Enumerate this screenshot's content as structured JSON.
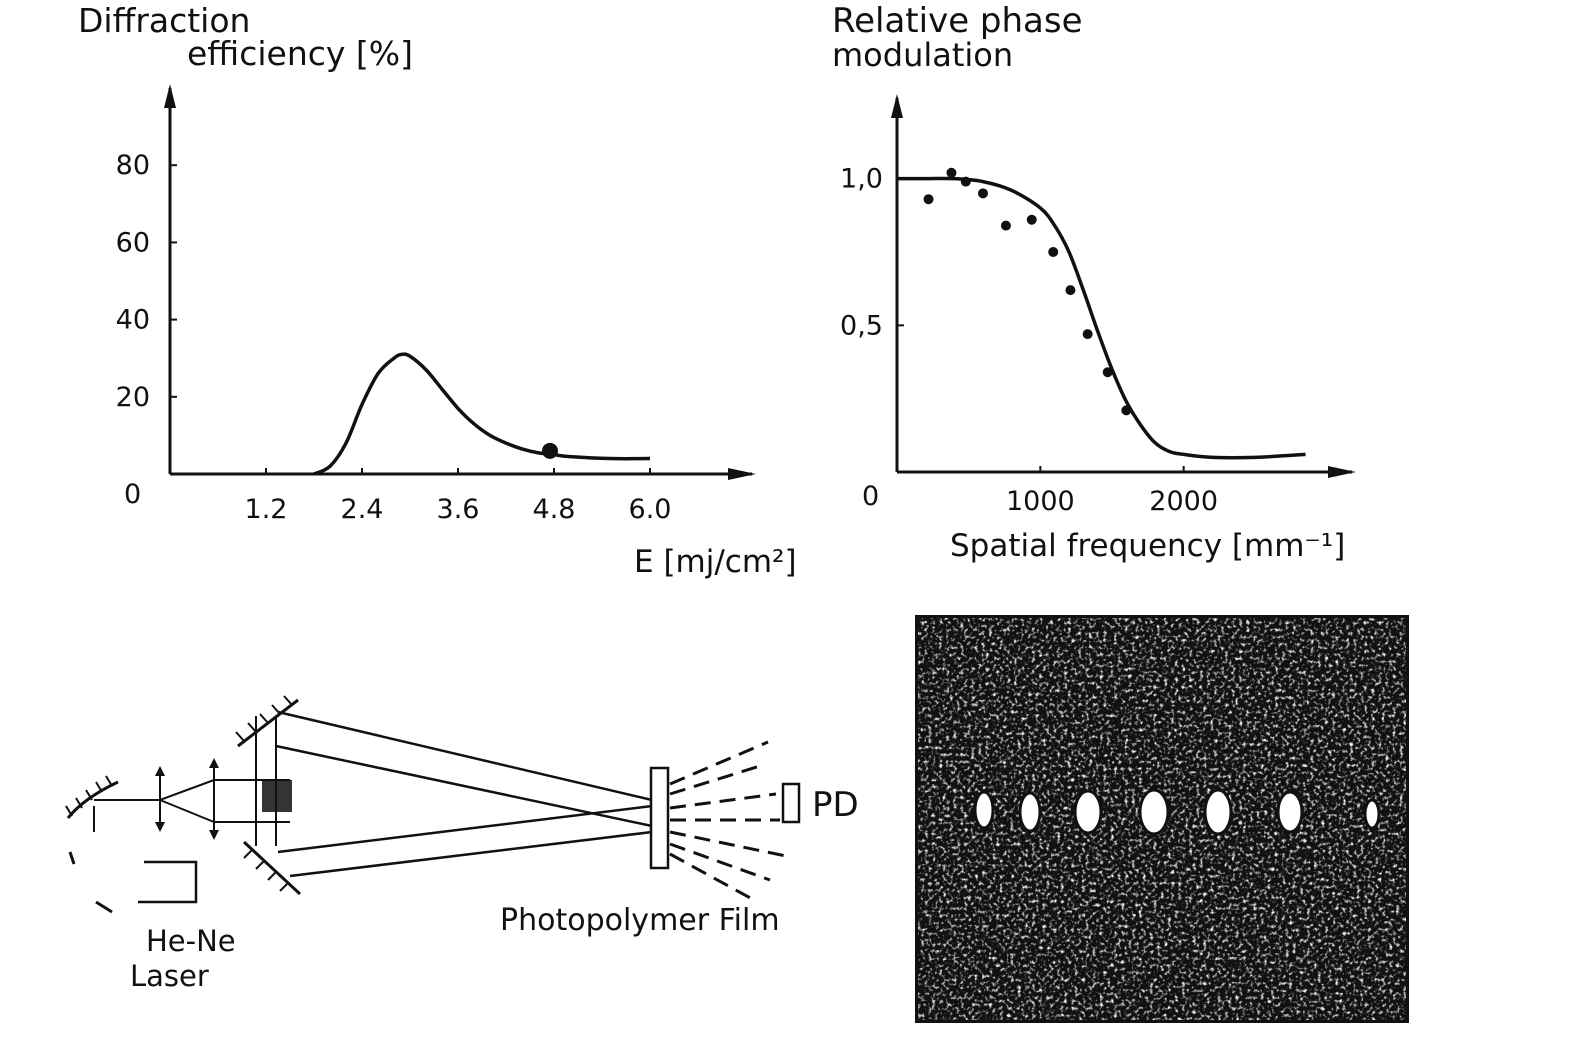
{
  "chart_data": [
    {
      "type": "line",
      "ylabel_line1": "Diffraction",
      "ylabel_line2": "efficiency [%]",
      "xlabel": "E [mj/cm²]",
      "x_ticks": [
        "1.2",
        "2.4",
        "3.6",
        "4.8",
        "6.0"
      ],
      "y_ticks": [
        "20",
        "40",
        "60",
        "80"
      ],
      "origin_label": "0",
      "xlim": [
        0,
        7.0
      ],
      "ylim": [
        0,
        100
      ],
      "series": [
        {
          "x": [
            1.8,
            2.0,
            2.2,
            2.4,
            2.6,
            2.8,
            2.9,
            3.0,
            3.2,
            3.4,
            3.6,
            3.8,
            4.0,
            4.2,
            4.4,
            4.6,
            4.8,
            5.0,
            5.5,
            6.0
          ],
          "values": [
            0,
            2,
            8,
            18,
            26,
            30,
            31,
            30.5,
            27,
            22,
            17,
            13,
            10,
            8,
            6.5,
            5.5,
            5,
            4.5,
            4,
            4
          ]
        }
      ],
      "points": [
        {
          "x": 4.75,
          "y": 6
        }
      ],
      "grid": false
    },
    {
      "type": "scatter",
      "ylabel_line1": "Relative phase",
      "ylabel_line2": "modulation",
      "xlabel": "Spatial frequency [mm⁻¹]",
      "x_ticks": [
        "1000",
        "2000"
      ],
      "y_ticks": [
        "0,5",
        "1,0"
      ],
      "origin_label": "0",
      "xlim": [
        0,
        3000
      ],
      "ylim": [
        0,
        1.2
      ],
      "series": [
        {
          "x": [
            0,
            200,
            400,
            600,
            800,
            1000,
            1100,
            1200,
            1300,
            1400,
            1500,
            1600,
            1700,
            1800,
            1900,
            2000,
            2200,
            2500,
            2850
          ],
          "values": [
            1.0,
            1.0,
            1.0,
            0.99,
            0.96,
            0.9,
            0.84,
            0.75,
            0.62,
            0.48,
            0.35,
            0.24,
            0.16,
            0.1,
            0.07,
            0.06,
            0.05,
            0.05,
            0.06
          ]
        }
      ],
      "points": [
        {
          "x": 220,
          "y": 0.93
        },
        {
          "x": 380,
          "y": 1.02
        },
        {
          "x": 480,
          "y": 0.99
        },
        {
          "x": 600,
          "y": 0.95
        },
        {
          "x": 760,
          "y": 0.84
        },
        {
          "x": 940,
          "y": 0.86
        },
        {
          "x": 1090,
          "y": 0.75
        },
        {
          "x": 1210,
          "y": 0.62
        },
        {
          "x": 1330,
          "y": 0.47
        },
        {
          "x": 1470,
          "y": 0.34
        },
        {
          "x": 1600,
          "y": 0.21
        }
      ],
      "grid": false
    }
  ],
  "diagram": {
    "labels": {
      "laser_line1": "He-Ne",
      "laser_line2": "Laser",
      "film": "Photopolymer Film",
      "detector": "PD"
    }
  }
}
